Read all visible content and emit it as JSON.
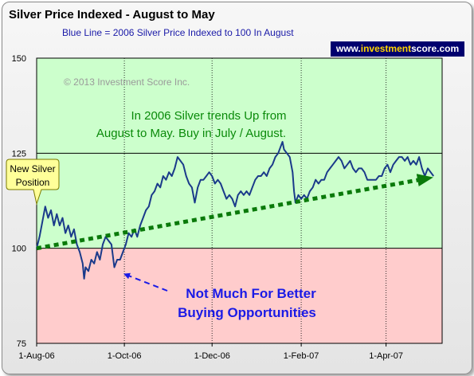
{
  "chart_data": {
    "type": "line",
    "title": "Silver Price Indexed - August to May",
    "subtitle": "Blue Line =  2006 Silver Price Indexed to 100 In August",
    "xlabel": "",
    "ylabel": "",
    "ylim": [
      75,
      150
    ],
    "yticks": [
      "75",
      "100",
      "125",
      "150"
    ],
    "xtick_labels": [
      "1-Aug-06",
      "1-Oct-06",
      "1-Dec-06",
      "1-Feb-07",
      "1-Apr-07"
    ],
    "xtick_days": [
      0,
      61,
      122,
      184,
      243
    ],
    "xlim_days": [
      0,
      282
    ],
    "grid": true,
    "bands": [
      {
        "from": 100,
        "to": 150,
        "color": "#ccffcc"
      },
      {
        "from": 75,
        "to": 100,
        "color": "#ffcccc"
      }
    ],
    "series": [
      {
        "color": "#1a3a8a",
        "points": [
          [
            0,
            100
          ],
          [
            2,
            103
          ],
          [
            4,
            107
          ],
          [
            6,
            111
          ],
          [
            8,
            108
          ],
          [
            10,
            110
          ],
          [
            12,
            106
          ],
          [
            14,
            109
          ],
          [
            16,
            106
          ],
          [
            18,
            108
          ],
          [
            20,
            104
          ],
          [
            22,
            106
          ],
          [
            24,
            103
          ],
          [
            26,
            105
          ],
          [
            28,
            101
          ],
          [
            30,
            99
          ],
          [
            32,
            96
          ],
          [
            33,
            92
          ],
          [
            34,
            95
          ],
          [
            36,
            94
          ],
          [
            38,
            97
          ],
          [
            40,
            96
          ],
          [
            42,
            99
          ],
          [
            44,
            97
          ],
          [
            46,
            101
          ],
          [
            48,
            103
          ],
          [
            50,
            102
          ],
          [
            52,
            101
          ],
          [
            54,
            95
          ],
          [
            56,
            97
          ],
          [
            58,
            97
          ],
          [
            60,
            99
          ],
          [
            62,
            101
          ],
          [
            64,
            104
          ],
          [
            66,
            103
          ],
          [
            68,
            105
          ],
          [
            70,
            103
          ],
          [
            72,
            106
          ],
          [
            74,
            108
          ],
          [
            76,
            110
          ],
          [
            78,
            111
          ],
          [
            80,
            114
          ],
          [
            82,
            115
          ],
          [
            84,
            117
          ],
          [
            86,
            116
          ],
          [
            88,
            119
          ],
          [
            90,
            118
          ],
          [
            92,
            120
          ],
          [
            94,
            119
          ],
          [
            96,
            121
          ],
          [
            98,
            124
          ],
          [
            100,
            123
          ],
          [
            102,
            122
          ],
          [
            104,
            119
          ],
          [
            106,
            117
          ],
          [
            108,
            116
          ],
          [
            110,
            112
          ],
          [
            112,
            116
          ],
          [
            114,
            118
          ],
          [
            116,
            118
          ],
          [
            118,
            119
          ],
          [
            120,
            120
          ],
          [
            122,
            119
          ],
          [
            124,
            117
          ],
          [
            126,
            118
          ],
          [
            128,
            117
          ],
          [
            130,
            115
          ],
          [
            132,
            113
          ],
          [
            134,
            114
          ],
          [
            136,
            113
          ],
          [
            138,
            111
          ],
          [
            140,
            114
          ],
          [
            142,
            115
          ],
          [
            144,
            114
          ],
          [
            146,
            115
          ],
          [
            148,
            114
          ],
          [
            150,
            116
          ],
          [
            152,
            118
          ],
          [
            154,
            119
          ],
          [
            156,
            119
          ],
          [
            158,
            120
          ],
          [
            160,
            119
          ],
          [
            162,
            121
          ],
          [
            164,
            122
          ],
          [
            166,
            124
          ],
          [
            168,
            125
          ],
          [
            170,
            127
          ],
          [
            171,
            128
          ],
          [
            172,
            126
          ],
          [
            174,
            125
          ],
          [
            176,
            124
          ],
          [
            178,
            120
          ],
          [
            179,
            115
          ],
          [
            180,
            112
          ],
          [
            182,
            114
          ],
          [
            184,
            113
          ],
          [
            186,
            114
          ],
          [
            188,
            113
          ],
          [
            190,
            115
          ],
          [
            192,
            116
          ],
          [
            194,
            118
          ],
          [
            196,
            117
          ],
          [
            198,
            118
          ],
          [
            200,
            118
          ],
          [
            202,
            120
          ],
          [
            204,
            121
          ],
          [
            206,
            122
          ],
          [
            208,
            123
          ],
          [
            210,
            124
          ],
          [
            212,
            123
          ],
          [
            214,
            121
          ],
          [
            216,
            122
          ],
          [
            218,
            123
          ],
          [
            220,
            121
          ],
          [
            222,
            120
          ],
          [
            224,
            121
          ],
          [
            226,
            121
          ],
          [
            228,
            120
          ],
          [
            230,
            118
          ],
          [
            232,
            118
          ],
          [
            234,
            118
          ],
          [
            236,
            118
          ],
          [
            238,
            119
          ],
          [
            240,
            119
          ],
          [
            242,
            121
          ],
          [
            244,
            122
          ],
          [
            246,
            120
          ],
          [
            248,
            122
          ],
          [
            250,
            123
          ],
          [
            252,
            124
          ],
          [
            254,
            124
          ],
          [
            256,
            123
          ],
          [
            258,
            124
          ],
          [
            260,
            122
          ],
          [
            262,
            123
          ],
          [
            264,
            122
          ],
          [
            266,
            124
          ],
          [
            268,
            121
          ],
          [
            270,
            119
          ],
          [
            272,
            121
          ],
          [
            274,
            120
          ],
          [
            276,
            119
          ]
        ]
      }
    ],
    "trendline": {
      "color": "#0a7a0a",
      "from": [
        0,
        100
      ],
      "to": [
        276,
        118
      ]
    },
    "annotations": {
      "copyright": "© 2013 Investment Score Inc.",
      "trend_note_line1": "In 2006 Silver trends Up from",
      "trend_note_line2": "August to May.  Buy in July / August.",
      "callout_line1": "New Silver",
      "callout_line2": "Position",
      "dip_note_line1": "Not Much For Better",
      "dip_note_line2": "Buying Opportunities"
    }
  },
  "badge": {
    "prefix": "www.",
    "highlight": "investment",
    "suffix": "score.com"
  }
}
